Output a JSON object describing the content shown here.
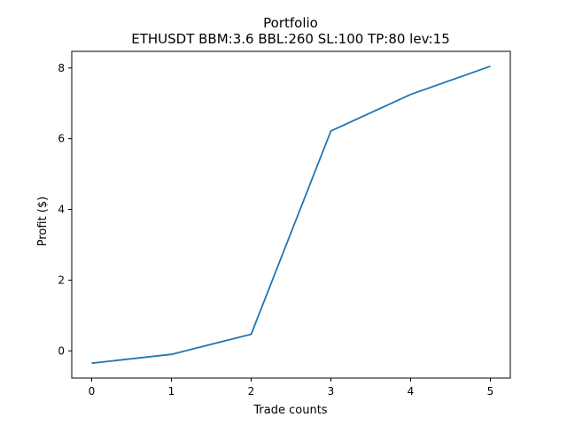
{
  "chart_data": {
    "type": "line",
    "title": "Portfolio",
    "subtitle": "ETHUSDT BBM:3.6 BBL:260 SL:100 TP:80 lev:15",
    "xlabel": "Trade counts",
    "ylabel": "Profit ($)",
    "x": [
      0,
      1,
      2,
      3,
      4,
      5
    ],
    "series": [
      {
        "values": [
          -0.35,
          -0.1,
          0.47,
          6.22,
          7.25,
          8.05
        ]
      }
    ],
    "xticks": [
      0,
      1,
      2,
      3,
      4,
      5
    ],
    "yticks": [
      0,
      2,
      4,
      6,
      8
    ],
    "xlim": [
      -0.25,
      5.25
    ],
    "ylim": [
      -0.77,
      8.47
    ],
    "line_color": "#1f77b4",
    "grid": false,
    "legend": "none"
  }
}
